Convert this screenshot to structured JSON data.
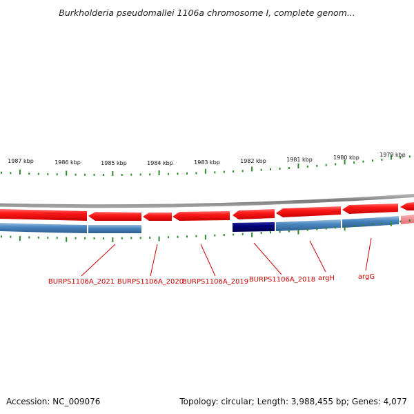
{
  "title": "Burkholderia pseudomallei 1106a chromosome I, complete genom...",
  "footer": {
    "accession": "Accession: NC_009076",
    "summary": "Topology: circular; Length: 3,988,455 bp; Genes: 4,077"
  },
  "colors": {
    "plus_strand": "#ee1111",
    "minus_strand": "#3a76b0",
    "highlight": "#00007a",
    "faded_plus": "#f07a80",
    "backbone": "#888888",
    "tick": "#2a8a2a",
    "label": "#cc0000"
  },
  "scale": {
    "unit": "kbp",
    "ticks": [
      {
        "label": "1987 kbp"
      },
      {
        "label": "1986 kbp"
      },
      {
        "label": "1985 kbp"
      },
      {
        "label": "1984 kbp"
      },
      {
        "label": "1983 kbp"
      },
      {
        "label": "1982 kbp"
      },
      {
        "label": "1981 kbp"
      },
      {
        "label": "1980 kbp"
      },
      {
        "label": "1979 kbp"
      }
    ]
  },
  "genes": [
    {
      "name": "BURPS1106A_2021",
      "strand": "both"
    },
    {
      "name": "BURPS1106A_2020",
      "strand": "plus"
    },
    {
      "name": "BURPS1106A_2019",
      "strand": "plus"
    },
    {
      "name": "BURPS1106A_2018",
      "strand": "both",
      "highlighted": true
    },
    {
      "name": "argH",
      "strand": "both"
    },
    {
      "name": "argG",
      "strand": "both"
    }
  ]
}
